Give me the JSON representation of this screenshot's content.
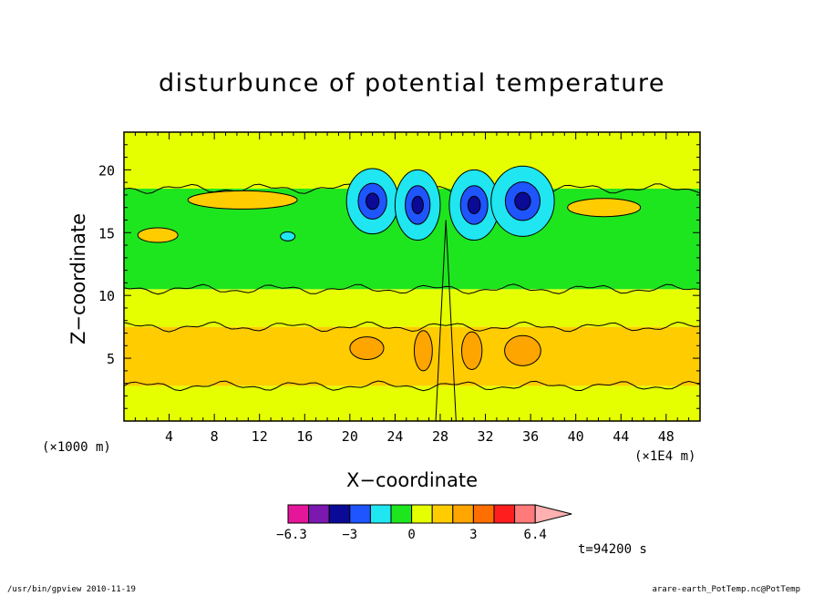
{
  "chart_data": {
    "type": "heatmap",
    "title": "disturbunce of potential temperature",
    "xlabel": "X−coordinate",
    "ylabel": "Z−coordinate",
    "x_unit_left": "(×1000 m)",
    "x_unit_right": "(×1E4 m)",
    "xlim": [
      0,
      51
    ],
    "ylim": [
      0,
      23
    ],
    "x_ticks": [
      4,
      8,
      12,
      16,
      20,
      24,
      28,
      32,
      36,
      40,
      44,
      48
    ],
    "y_ticks": [
      5,
      10,
      15,
      20
    ],
    "time_label": "t=94200 s",
    "colorbar": {
      "labels": [
        "−6.3",
        "−3",
        "0",
        "3",
        "6.4"
      ],
      "colors": [
        "#e6169b",
        "#7a18b0",
        "#0a0a96",
        "#1f55ff",
        "#1fe6f0",
        "#1ee61e",
        "#e6ff00",
        "#ffcc00",
        "#ffa500",
        "#ff6e00",
        "#ff1e1e",
        "#ff7a7a",
        "#ffb0b0"
      ]
    },
    "bands": [
      {
        "level": "0 to 1.5",
        "z_range": [
          0,
          2.8
        ],
        "color": "#e6ff00"
      },
      {
        "level": "1.5 to 3",
        "z_range": [
          2.8,
          7.5
        ],
        "color": "#ffcc00"
      },
      {
        "level": "0 to 1.5",
        "z_range": [
          7.5,
          10.5
        ],
        "color": "#e6ff00"
      },
      {
        "level": "-1.5 to 0",
        "z_range": [
          10.5,
          18.5
        ],
        "color": "#1ee61e"
      },
      {
        "level": "0 to 1.5",
        "z_range": [
          18.5,
          23
        ],
        "color": "#e6ff00"
      }
    ]
  },
  "footer": {
    "left": "/usr/bin/gpview   2010-11-19",
    "right": "arare-earth_PotTemp.nc@PotTemp"
  }
}
